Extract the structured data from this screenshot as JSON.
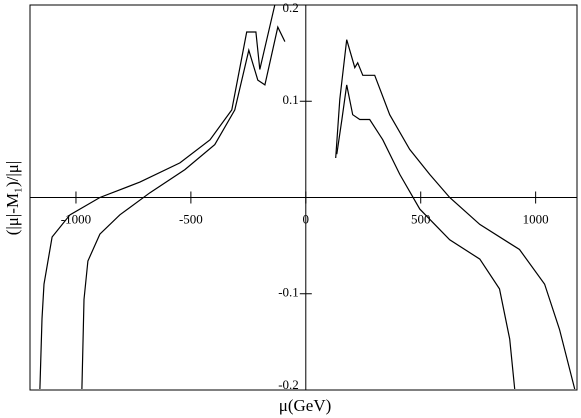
{
  "chart_data": {
    "type": "line",
    "x_label": "μ(GeV)",
    "y_label": "(|μ|-M₁)/|μ|",
    "xlim": [
      -1200,
      1180
    ],
    "ylim": [
      -0.2,
      0.2
    ],
    "xticks": [
      -1000,
      -500,
      0,
      500,
      1000
    ],
    "yticks": [
      -0.2,
      -0.1,
      0.1,
      0.2
    ],
    "series": [
      {
        "color": "#000000",
        "x": [
          -1157,
          -1148,
          -1139,
          -1104,
          -1026,
          -896,
          -722,
          -548,
          -417,
          -322,
          -257,
          -217,
          -200,
          -135
        ],
        "values": [
          -0.199,
          -0.126,
          -0.09,
          -0.041,
          -0.018,
          0,
          0.016,
          0.036,
          0.06,
          0.091,
          0.172,
          0.172,
          0.133,
          0.2
        ]
      },
      {
        "color": "#000000",
        "x": [
          -974,
          -965,
          -948,
          -896,
          -809,
          -678,
          -526,
          -396,
          -309,
          -248,
          -209,
          -178,
          -122,
          -91
        ],
        "values": [
          -0.199,
          -0.106,
          -0.066,
          -0.038,
          -0.018,
          0.005,
          0.029,
          0.055,
          0.091,
          0.153,
          0.122,
          0.117,
          0.177,
          0.162
        ]
      },
      {
        "color": "#000000",
        "x": [
          130,
          148,
          178,
          213,
          226,
          248,
          300,
          365,
          452,
          539,
          626,
          757,
          930,
          1039,
          1104,
          1170
        ],
        "values": [
          0.041,
          0.102,
          0.164,
          0.135,
          0.14,
          0.127,
          0.127,
          0.086,
          0.05,
          0.024,
          0,
          -0.028,
          -0.054,
          -0.09,
          -0.137,
          -0.199
        ]
      },
      {
        "color": "#000000",
        "x": [
          135,
          157,
          178,
          204,
          235,
          278,
          335,
          409,
          496,
          626,
          757,
          843,
          887,
          909
        ],
        "values": [
          0.045,
          0.081,
          0.117,
          0.086,
          0.081,
          0.081,
          0.06,
          0.024,
          -0.012,
          -0.044,
          -0.064,
          -0.095,
          -0.147,
          -0.199
        ]
      }
    ]
  }
}
